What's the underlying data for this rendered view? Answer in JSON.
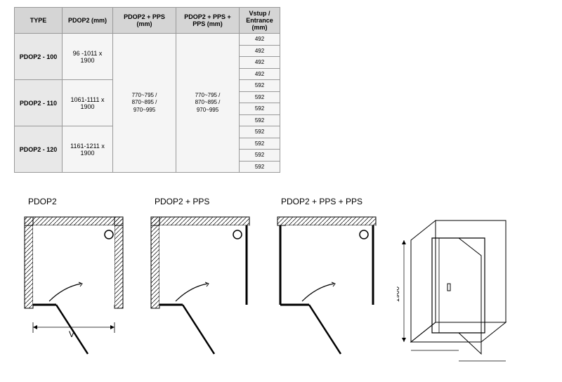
{
  "table": {
    "headers": [
      "TYPE",
      "PDOP2 (mm)",
      "PDOP2 + PPS (mm)",
      "PDOP2 + PPS + PPS (mm)",
      "Vstup / Entrance (mm)"
    ],
    "types": [
      {
        "name": "PDOP2 - 100",
        "dim": "96 -1011 x 1900",
        "entrances": [
          "492",
          "492",
          "492",
          "492"
        ]
      },
      {
        "name": "PDOP2 - 110",
        "dim": "1061-1111 x 1900",
        "entrances": [
          "592",
          "592",
          "592",
          "592"
        ]
      },
      {
        "name": "PDOP2 - 120",
        "dim": "1161-1211 x 1900",
        "entrances": [
          "592",
          "592",
          "592",
          "592"
        ]
      }
    ],
    "config1": "770~795 / 870~895 / 970~995",
    "config2": "770~795 / 870~895 / 970~995"
  },
  "diagrams": {
    "titles": [
      "PDOP2",
      "PDOP2 + PPS",
      "PDOP2 + PPS + PPS"
    ],
    "v_label": "V",
    "height_label": "1900",
    "colors": {
      "stroke": "#000000",
      "wall_fill": "#ffffff",
      "hatching": "#000000"
    }
  }
}
